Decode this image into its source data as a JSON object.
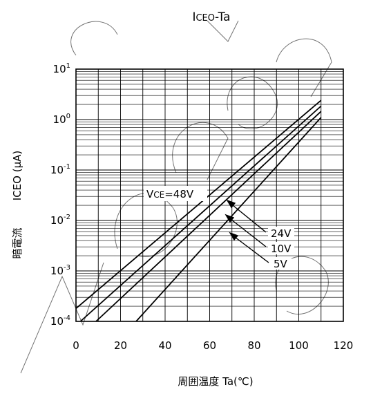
{
  "chart_data": {
    "type": "line",
    "title_prefix": "I",
    "title_sub": "CEO",
    "title_suffix": "-Ta",
    "xlabel": "周囲温度  Ta(℃)",
    "ylabel_jp": "暗電流",
    "ylabel": "ICEO (μA)",
    "xlim": [
      0,
      120
    ],
    "ylim_log10": [
      -4,
      1
    ],
    "y_scale": "log",
    "grid": true,
    "x_ticks": [
      {
        "value": 0,
        "label": "0"
      },
      {
        "value": 20,
        "label": "20"
      },
      {
        "value": 40,
        "label": "40"
      },
      {
        "value": 60,
        "label": "60"
      },
      {
        "value": 80,
        "label": "80"
      },
      {
        "value": 100,
        "label": "100"
      },
      {
        "value": 120,
        "label": "120"
      }
    ],
    "y_ticks": [
      {
        "exp": 1,
        "base": "10",
        "sup": "1"
      },
      {
        "exp": 0,
        "base": "10",
        "sup": "0"
      },
      {
        "exp": -1,
        "base": "10",
        "sup": "-1"
      },
      {
        "exp": -2,
        "base": "10",
        "sup": "-2"
      },
      {
        "exp": -3,
        "base": "10",
        "sup": "-3"
      },
      {
        "exp": -4,
        "base": "10",
        "sup": "-4"
      }
    ],
    "series": [
      {
        "name": "VCE=48V",
        "x": [
          0,
          110
        ],
        "y": [
          0.00018,
          2.4
        ]
      },
      {
        "name": "24V",
        "x": [
          2,
          110
        ],
        "y": [
          0.0001,
          1.85
        ]
      },
      {
        "name": "10V",
        "x": [
          9,
          110
        ],
        "y": [
          0.0001,
          1.45
        ]
      },
      {
        "name": "5V",
        "x": [
          27,
          110
        ],
        "y": [
          0.0001,
          1.1
        ]
      }
    ],
    "annotations": [
      {
        "id": "vce48",
        "label_v": "V",
        "label_sub": "CE",
        "label_rest": "=48V"
      },
      {
        "id": "a24",
        "text": "24V"
      },
      {
        "id": "a10",
        "text": "10V"
      },
      {
        "id": "a5",
        "text": "5V"
      }
    ]
  }
}
